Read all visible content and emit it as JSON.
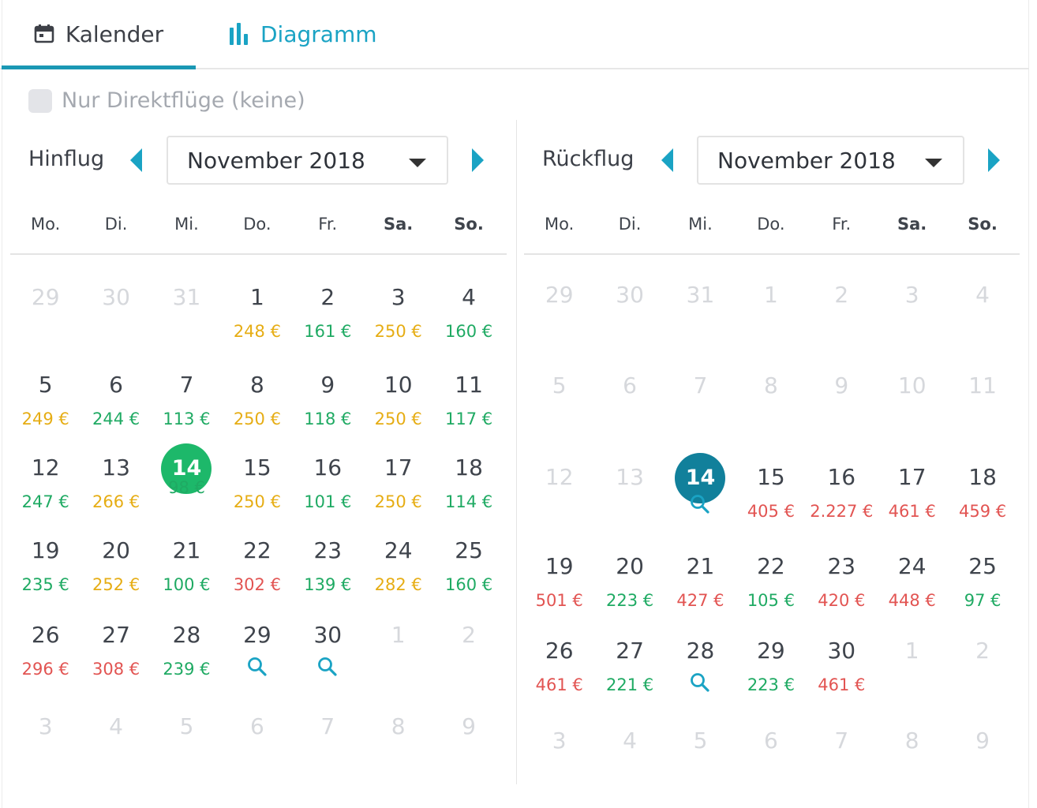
{
  "tabs": {
    "kalender": "Kalender",
    "diagramm": "Diagramm"
  },
  "direct_only": {
    "label": "Nur Direktflüge (keine)",
    "checked": false
  },
  "weekdays": [
    "Mo.",
    "Di.",
    "Mi.",
    "Do.",
    "Fr.",
    "Sa.",
    "So."
  ],
  "outbound": {
    "label": "Hinflug",
    "month": "November 2018",
    "rows": [
      [
        {
          "d": "29",
          "t": "out"
        },
        {
          "d": "30",
          "t": "out"
        },
        {
          "d": "31",
          "t": "out"
        },
        {
          "d": "1",
          "p": "248 €",
          "c": "o"
        },
        {
          "d": "2",
          "p": "161 €",
          "c": "g"
        },
        {
          "d": "3",
          "p": "250 €",
          "c": "o"
        },
        {
          "d": "4",
          "p": "160 €",
          "c": "g"
        }
      ],
      [
        {
          "d": "5",
          "p": "249 €",
          "c": "o"
        },
        {
          "d": "6",
          "p": "244 €",
          "c": "g"
        },
        {
          "d": "7",
          "p": "113 €",
          "c": "g"
        },
        {
          "d": "8",
          "p": "250 €",
          "c": "o"
        },
        {
          "d": "9",
          "p": "118 €",
          "c": "g"
        },
        {
          "d": "10",
          "p": "250 €",
          "c": "o"
        },
        {
          "d": "11",
          "p": "117 €",
          "c": "g"
        }
      ],
      [
        {
          "d": "12",
          "p": "247 €",
          "c": "g"
        },
        {
          "d": "13",
          "p": "266 €",
          "c": "o"
        },
        {
          "d": "14",
          "p": "98 €",
          "c": "g",
          "selected": "green"
        },
        {
          "d": "15",
          "p": "250 €",
          "c": "o"
        },
        {
          "d": "16",
          "p": "101 €",
          "c": "g"
        },
        {
          "d": "17",
          "p": "250 €",
          "c": "o"
        },
        {
          "d": "18",
          "p": "114 €",
          "c": "g"
        }
      ],
      [
        {
          "d": "19",
          "p": "235 €",
          "c": "g"
        },
        {
          "d": "20",
          "p": "252 €",
          "c": "o"
        },
        {
          "d": "21",
          "p": "100 €",
          "c": "g"
        },
        {
          "d": "22",
          "p": "302 €",
          "c": "r"
        },
        {
          "d": "23",
          "p": "139 €",
          "c": "g"
        },
        {
          "d": "24",
          "p": "282 €",
          "c": "o"
        },
        {
          "d": "25",
          "p": "160 €",
          "c": "g"
        }
      ],
      [
        {
          "d": "26",
          "p": "296 €",
          "c": "r"
        },
        {
          "d": "27",
          "p": "308 €",
          "c": "r"
        },
        {
          "d": "28",
          "p": "239 €",
          "c": "g"
        },
        {
          "d": "29",
          "search": true
        },
        {
          "d": "30",
          "search": true
        },
        {
          "d": "1",
          "t": "out"
        },
        {
          "d": "2",
          "t": "out"
        }
      ],
      [
        {
          "d": "3",
          "t": "out"
        },
        {
          "d": "4",
          "t": "out"
        },
        {
          "d": "5",
          "t": "out"
        },
        {
          "d": "6",
          "t": "out"
        },
        {
          "d": "7",
          "t": "out"
        },
        {
          "d": "8",
          "t": "out"
        },
        {
          "d": "9",
          "t": "out"
        }
      ]
    ]
  },
  "return": {
    "label": "Rückflug",
    "month": "November 2018",
    "rows": [
      [
        {
          "d": "29",
          "t": "out"
        },
        {
          "d": "30",
          "t": "out"
        },
        {
          "d": "31",
          "t": "out"
        },
        {
          "d": "1",
          "t": "out"
        },
        {
          "d": "2",
          "t": "out"
        },
        {
          "d": "3",
          "t": "out"
        },
        {
          "d": "4",
          "t": "out"
        }
      ],
      [
        {
          "d": "5",
          "t": "out"
        },
        {
          "d": "6",
          "t": "out"
        },
        {
          "d": "7",
          "t": "out"
        },
        {
          "d": "8",
          "t": "out"
        },
        {
          "d": "9",
          "t": "out"
        },
        {
          "d": "10",
          "t": "out"
        },
        {
          "d": "11",
          "t": "out"
        }
      ],
      [
        {
          "d": "12",
          "t": "out"
        },
        {
          "d": "13",
          "t": "out"
        },
        {
          "d": "14",
          "selected": "teal",
          "search": true
        },
        {
          "d": "15",
          "p": "405 €",
          "c": "r"
        },
        {
          "d": "16",
          "p": "2.227 €",
          "c": "r"
        },
        {
          "d": "17",
          "p": "461 €",
          "c": "r"
        },
        {
          "d": "18",
          "p": "459 €",
          "c": "r"
        }
      ],
      [
        {
          "d": "19",
          "p": "501 €",
          "c": "r"
        },
        {
          "d": "20",
          "p": "223 €",
          "c": "g"
        },
        {
          "d": "21",
          "p": "427 €",
          "c": "r"
        },
        {
          "d": "22",
          "p": "105 €",
          "c": "g"
        },
        {
          "d": "23",
          "p": "420 €",
          "c": "r"
        },
        {
          "d": "24",
          "p": "448 €",
          "c": "r"
        },
        {
          "d": "25",
          "p": "97 €",
          "c": "g"
        }
      ],
      [
        {
          "d": "26",
          "p": "461 €",
          "c": "r"
        },
        {
          "d": "27",
          "p": "221 €",
          "c": "g"
        },
        {
          "d": "28",
          "search": true
        },
        {
          "d": "29",
          "p": "223 €",
          "c": "g"
        },
        {
          "d": "30",
          "p": "461 €",
          "c": "r"
        },
        {
          "d": "1",
          "t": "out"
        },
        {
          "d": "2",
          "t": "out"
        }
      ],
      [
        {
          "d": "3",
          "t": "out"
        },
        {
          "d": "4",
          "t": "out"
        },
        {
          "d": "5",
          "t": "out"
        },
        {
          "d": "6",
          "t": "out"
        },
        {
          "d": "7",
          "t": "out"
        },
        {
          "d": "8",
          "t": "out"
        },
        {
          "d": "9",
          "t": "out"
        }
      ]
    ]
  },
  "colors": {
    "accent": "#1aa3c4",
    "price_low": "#1faa63",
    "price_mid": "#e6ad14",
    "price_high": "#e25452",
    "selected_outbound": "#1db86a",
    "selected_return": "#11809b"
  },
  "icons": {
    "kalender_tab": "calendar-icon",
    "diagramm_tab": "bar-chart-icon",
    "search": "search-icon"
  }
}
